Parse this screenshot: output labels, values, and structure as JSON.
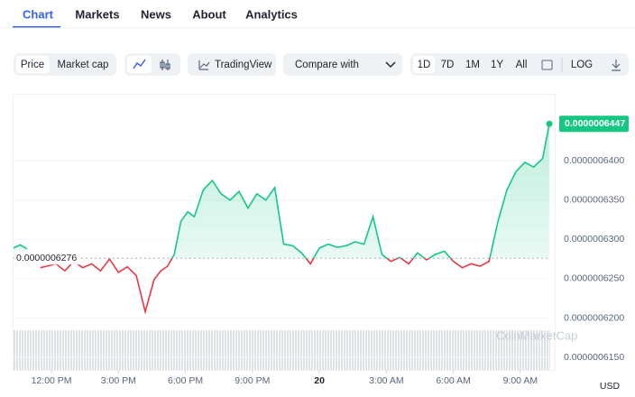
{
  "tabs": [
    "Chart",
    "Markets",
    "News",
    "About",
    "Analytics"
  ],
  "toolbar": {
    "price_toggle": [
      "Price",
      "Market cap"
    ],
    "tradingview": "TradingView",
    "compare": "Compare with",
    "ranges": [
      "1D",
      "7D",
      "1M",
      "1Y",
      "All"
    ],
    "log": "LOG"
  },
  "chart_data": {
    "type": "line",
    "x": [
      10.3,
      10.6,
      10.9,
      11.2,
      11.5,
      11.8,
      12.2,
      12.6,
      13.0,
      13.4,
      13.8,
      14.2,
      14.6,
      15.0,
      15.4,
      15.8,
      16.2,
      16.6,
      16.9,
      17.2,
      17.5,
      17.8,
      18.1,
      18.4,
      18.8,
      19.2,
      19.6,
      20.0,
      20.4,
      20.8,
      21.2,
      21.6,
      22.0,
      22.4,
      22.8,
      23.2,
      23.6,
      24.0,
      24.4,
      24.8,
      25.2,
      25.6,
      26.0,
      26.4,
      26.8,
      27.2,
      27.6,
      28.0,
      28.4,
      28.8,
      29.2,
      29.6,
      30.0,
      30.4,
      30.8,
      31.2,
      31.6,
      32.0,
      32.4,
      32.8,
      33.2,
      33.6,
      34.0,
      34.3
    ],
    "series": [
      {
        "name": "Price",
        "color": "#16c784",
        "down_color": "#ea3943",
        "values": [
          6.289e-07,
          6.293e-07,
          6.288e-07,
          null,
          6.264e-07,
          6.266e-07,
          6.269e-07,
          6.26e-07,
          6.272e-07,
          6.264e-07,
          6.269e-07,
          6.26e-07,
          6.275e-07,
          6.258e-07,
          6.265e-07,
          6.254e-07,
          6.208e-07,
          6.249e-07,
          6.26e-07,
          6.266e-07,
          6.281e-07,
          6.323e-07,
          6.335e-07,
          6.329e-07,
          6.363e-07,
          6.375e-07,
          6.358e-07,
          6.35e-07,
          6.361e-07,
          6.34e-07,
          6.358e-07,
          6.35e-07,
          6.366e-07,
          6.294e-07,
          6.292e-07,
          6.283e-07,
          6.269e-07,
          6.289e-07,
          6.294e-07,
          6.29e-07,
          6.292e-07,
          6.297e-07,
          6.294e-07,
          6.329e-07,
          6.281e-07,
          6.272e-07,
          6.277e-07,
          6.269e-07,
          6.283e-07,
          6.274e-07,
          6.281e-07,
          6.285e-07,
          6.272e-07,
          6.264e-07,
          6.269e-07,
          6.266e-07,
          6.272e-07,
          6.323e-07,
          6.363e-07,
          6.386e-07,
          6.398e-07,
          6.392e-07,
          6.403e-07,
          6.447e-07
        ]
      }
    ],
    "reference": {
      "value": 6.276e-07,
      "label": "0.0000006276"
    },
    "last_value": {
      "value": 6.447e-07,
      "label": "0.0000006447"
    },
    "xlim": [
      10.3,
      34.34
    ],
    "xticks": [
      {
        "value": 12,
        "label": "12:00 PM"
      },
      {
        "value": 15,
        "label": "3:00 PM"
      },
      {
        "value": 18,
        "label": "6:00 PM"
      },
      {
        "value": 21,
        "label": "9:00 PM"
      },
      {
        "value": 24,
        "label": "20"
      },
      {
        "value": 27,
        "label": "3:00 AM"
      },
      {
        "value": 30,
        "label": "6:00 AM"
      },
      {
        "value": 33,
        "label": "9:00 AM"
      }
    ],
    "ylim": [
      6.134e-07,
      6.484e-07
    ],
    "yticks": [
      {
        "value": 6.15e-07,
        "label": "0.0000006150"
      },
      {
        "value": 6.2e-07,
        "label": "0.0000006200"
      },
      {
        "value": 6.25e-07,
        "label": "0.0000006250"
      },
      {
        "value": 6.3e-07,
        "label": "0.0000006300"
      },
      {
        "value": 6.35e-07,
        "label": "0.0000006350"
      },
      {
        "value": 6.4e-07,
        "label": "0.0000006400"
      }
    ],
    "currency": "USD",
    "watermark": "CoinMarketCap"
  }
}
